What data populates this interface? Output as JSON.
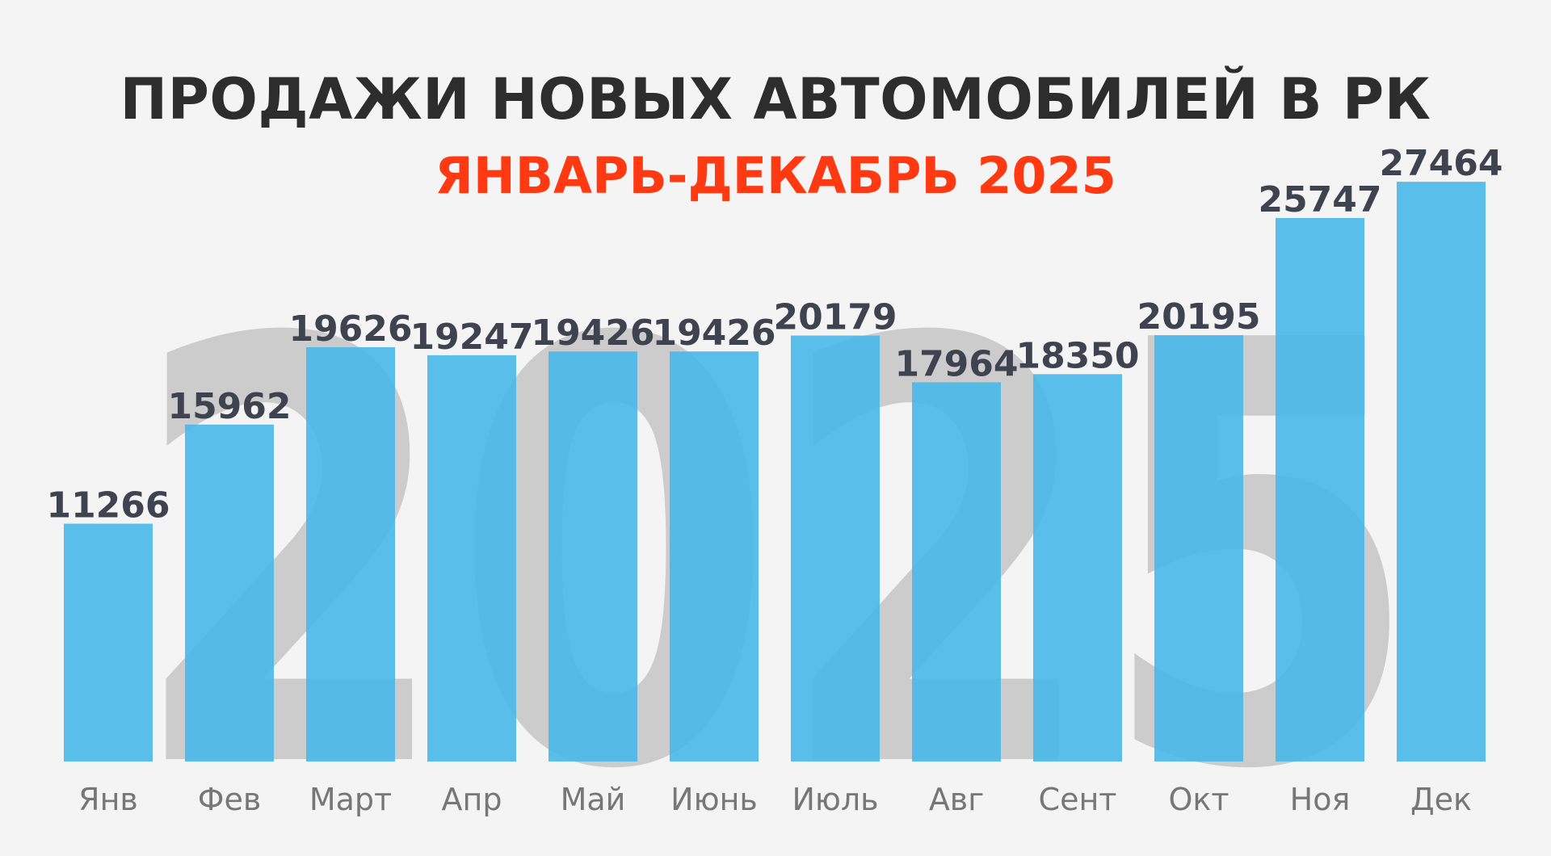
{
  "header": {
    "title": "ПРОДАЖИ НОВЫХ АВТОМОБИЛЕЙ В РК",
    "subtitle": "ЯНВАРЬ-ДЕКАБРЬ 2025"
  },
  "watermark": {
    "text": "2025"
  },
  "colors": {
    "background": "#f4f4f4",
    "title": "#2d2d2d",
    "subtitle": "#ff3a12",
    "bar": "#4bb8e8",
    "value_label": "#3f4350",
    "category_label": "#777777",
    "watermark": "#cccccc"
  },
  "chart_data": {
    "type": "bar",
    "title": "ПРОДАЖИ НОВЫХ АВТОМОБИЛЕЙ В РК",
    "subtitle": "ЯНВАРЬ-ДЕКАБРЬ 2025",
    "categories": [
      "Янв",
      "Фев",
      "Март",
      "Апр",
      "Май",
      "Июнь",
      "Июль",
      "Авг",
      "Сент",
      "Окт",
      "Ноя",
      "Дек"
    ],
    "values": [
      11266,
      15962,
      19626,
      19247,
      19426,
      19426,
      20179,
      17964,
      18350,
      20195,
      25747,
      27464
    ],
    "data_labels": [
      "11266",
      "15962",
      "19626",
      "19247",
      "19426",
      "19426",
      "20179",
      "17964",
      "18350",
      "20195",
      "25747",
      "27464"
    ],
    "xlabel": "",
    "ylabel": "",
    "grid": false,
    "legend": "none"
  }
}
